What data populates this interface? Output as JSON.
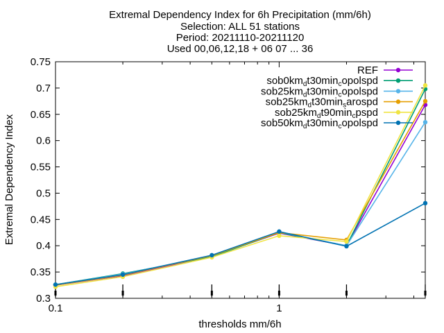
{
  "chart_data": {
    "type": "line",
    "title_lines": [
      "Extremal Dependency Index  for 6h Precipitation (mm/6h)",
      "Selection: ALL      51 stations",
      "Period: 20211110-20211120",
      "Used 00,06,12,18 + 06 07 ... 36"
    ],
    "xlabel": "thresholds mm/6h",
    "ylabel": "Extremal Dependency Index",
    "xscale": "log",
    "xlim": [
      0.1,
      4.5
    ],
    "ylim": [
      0.3,
      0.75
    ],
    "xtick_labels": [
      {
        "value": 0.1,
        "label": "0.1"
      },
      {
        "value": 1,
        "label": "1"
      }
    ],
    "ytick_labels": [
      {
        "value": 0.3,
        "label": "0.3"
      },
      {
        "value": 0.35,
        "label": "0.35"
      },
      {
        "value": 0.4,
        "label": "0.4"
      },
      {
        "value": 0.45,
        "label": "0.45"
      },
      {
        "value": 0.5,
        "label": "0.5"
      },
      {
        "value": 0.55,
        "label": "0.55"
      },
      {
        "value": 0.6,
        "label": "0.6"
      },
      {
        "value": 0.65,
        "label": "0.65"
      },
      {
        "value": 0.7,
        "label": "0.7"
      },
      {
        "value": 0.75,
        "label": "0.75"
      }
    ],
    "grid": false,
    "legend_position": "top-right",
    "x": [
      0.1,
      0.2,
      0.5,
      1,
      2,
      4.5
    ],
    "series": [
      {
        "name": "REF",
        "color": "#9400d3",
        "values": [
          0.325,
          0.343,
          0.38,
          0.424,
          0.4,
          0.668
        ],
        "legend_parts": [
          {
            "t": "REF",
            "s": ""
          }
        ]
      },
      {
        "name": "sob0km_dt30min_copolspd",
        "color": "#009e73",
        "values": [
          0.326,
          0.347,
          0.379,
          0.425,
          0.4,
          0.698
        ],
        "legend_parts": [
          {
            "t": "sob0km",
            "s": ""
          },
          {
            "t": "d",
            "s": "sub"
          },
          {
            "t": "t30min",
            "s": ""
          },
          {
            "t": "c",
            "s": "sub"
          },
          {
            "t": "opolspd",
            "s": ""
          }
        ]
      },
      {
        "name": "sob25km_dt30min_copolspd",
        "color": "#56b4e9",
        "values": [
          0.326,
          0.346,
          0.381,
          0.426,
          0.4,
          0.635
        ],
        "legend_parts": [
          {
            "t": "sob25km",
            "s": ""
          },
          {
            "t": "d",
            "s": "sub"
          },
          {
            "t": "t30min",
            "s": ""
          },
          {
            "t": "c",
            "s": "sub"
          },
          {
            "t": "opolspd",
            "s": ""
          }
        ]
      },
      {
        "name": "sob25km_dt30min_sarospd",
        "color": "#e69f00",
        "values": [
          0.325,
          0.344,
          0.381,
          0.425,
          0.411,
          0.675
        ],
        "legend_parts": [
          {
            "t": "sob25km",
            "s": ""
          },
          {
            "t": "d",
            "s": "sub"
          },
          {
            "t": "t30min",
            "s": ""
          },
          {
            "t": "s",
            "s": "sub"
          },
          {
            "t": "arospd",
            "s": ""
          }
        ]
      },
      {
        "name": "sob25km_dt90min_cpspd",
        "color": "#f0e442",
        "values": [
          0.322,
          0.341,
          0.378,
          0.419,
          0.408,
          0.705
        ],
        "legend_parts": [
          {
            "t": "sob25km",
            "s": ""
          },
          {
            "t": "d",
            "s": "sub"
          },
          {
            "t": "t90min",
            "s": ""
          },
          {
            "t": "c",
            "s": "sub"
          },
          {
            "t": "pspd",
            "s": ""
          }
        ]
      },
      {
        "name": "sob50km_dt30min_copolspd",
        "color": "#0072b2",
        "values": [
          0.326,
          0.345,
          0.382,
          0.427,
          0.399,
          0.481
        ],
        "legend_parts": [
          {
            "t": "sob50km",
            "s": ""
          },
          {
            "t": "d",
            "s": "sub"
          },
          {
            "t": "t30min",
            "s": ""
          },
          {
            "t": "c",
            "s": "sub"
          },
          {
            "t": "opolspd",
            "s": ""
          }
        ]
      }
    ]
  }
}
